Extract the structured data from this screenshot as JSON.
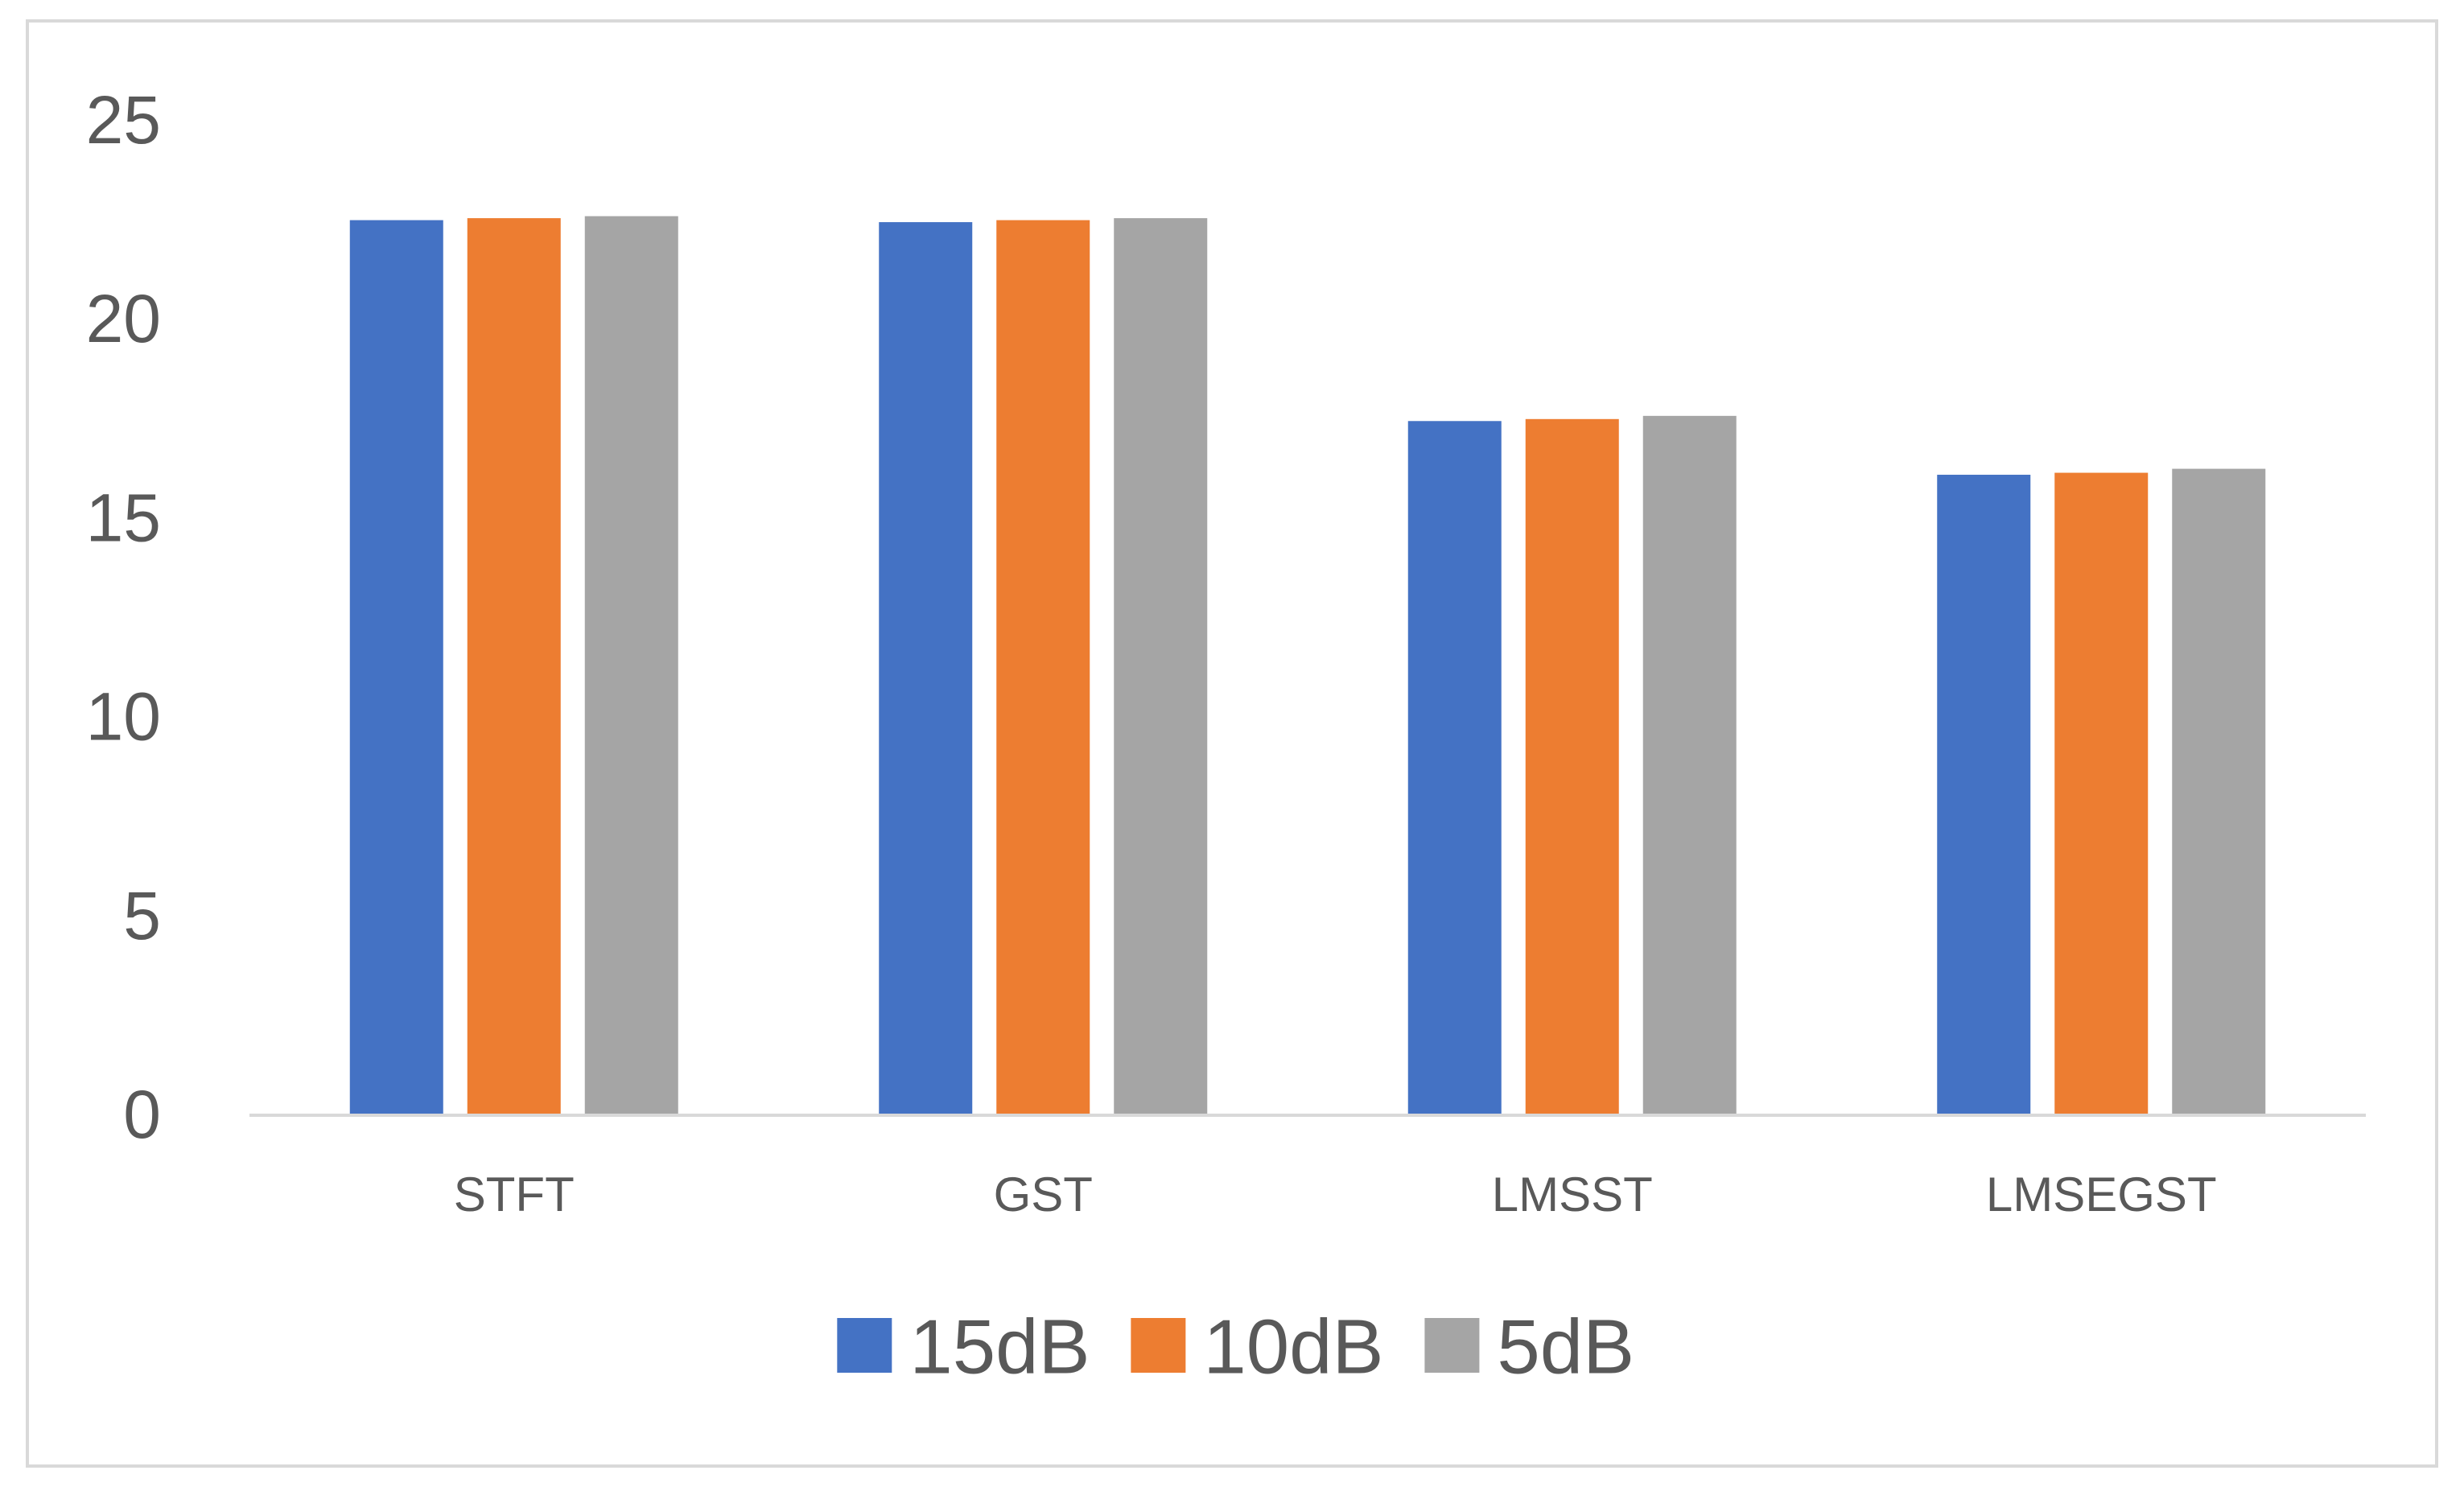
{
  "chart_data": {
    "type": "bar",
    "title": "",
    "xlabel": "",
    "ylabel": "",
    "categories": [
      "STFT",
      "GST",
      "LMSST",
      "LMSEGST"
    ],
    "series": [
      {
        "name": "15dB",
        "values": [
          22.5,
          22.45,
          17.45,
          16.1
        ],
        "color": "#4472C4"
      },
      {
        "name": "10dB",
        "values": [
          22.55,
          22.5,
          17.5,
          16.15
        ],
        "color": "#ED7D31"
      },
      {
        "name": "5dB",
        "values": [
          22.6,
          22.55,
          17.58,
          16.25
        ],
        "color": "#A5A5A5"
      }
    ],
    "ylim": [
      0,
      25
    ],
    "yticks": [
      "0",
      "5",
      "10",
      "15",
      "20",
      "25"
    ],
    "grid": false,
    "legend_position": "bottom",
    "colors": {
      "axis": "#D9D9D9",
      "frame": "#D9D9D9",
      "tick_text": "#595959"
    }
  }
}
